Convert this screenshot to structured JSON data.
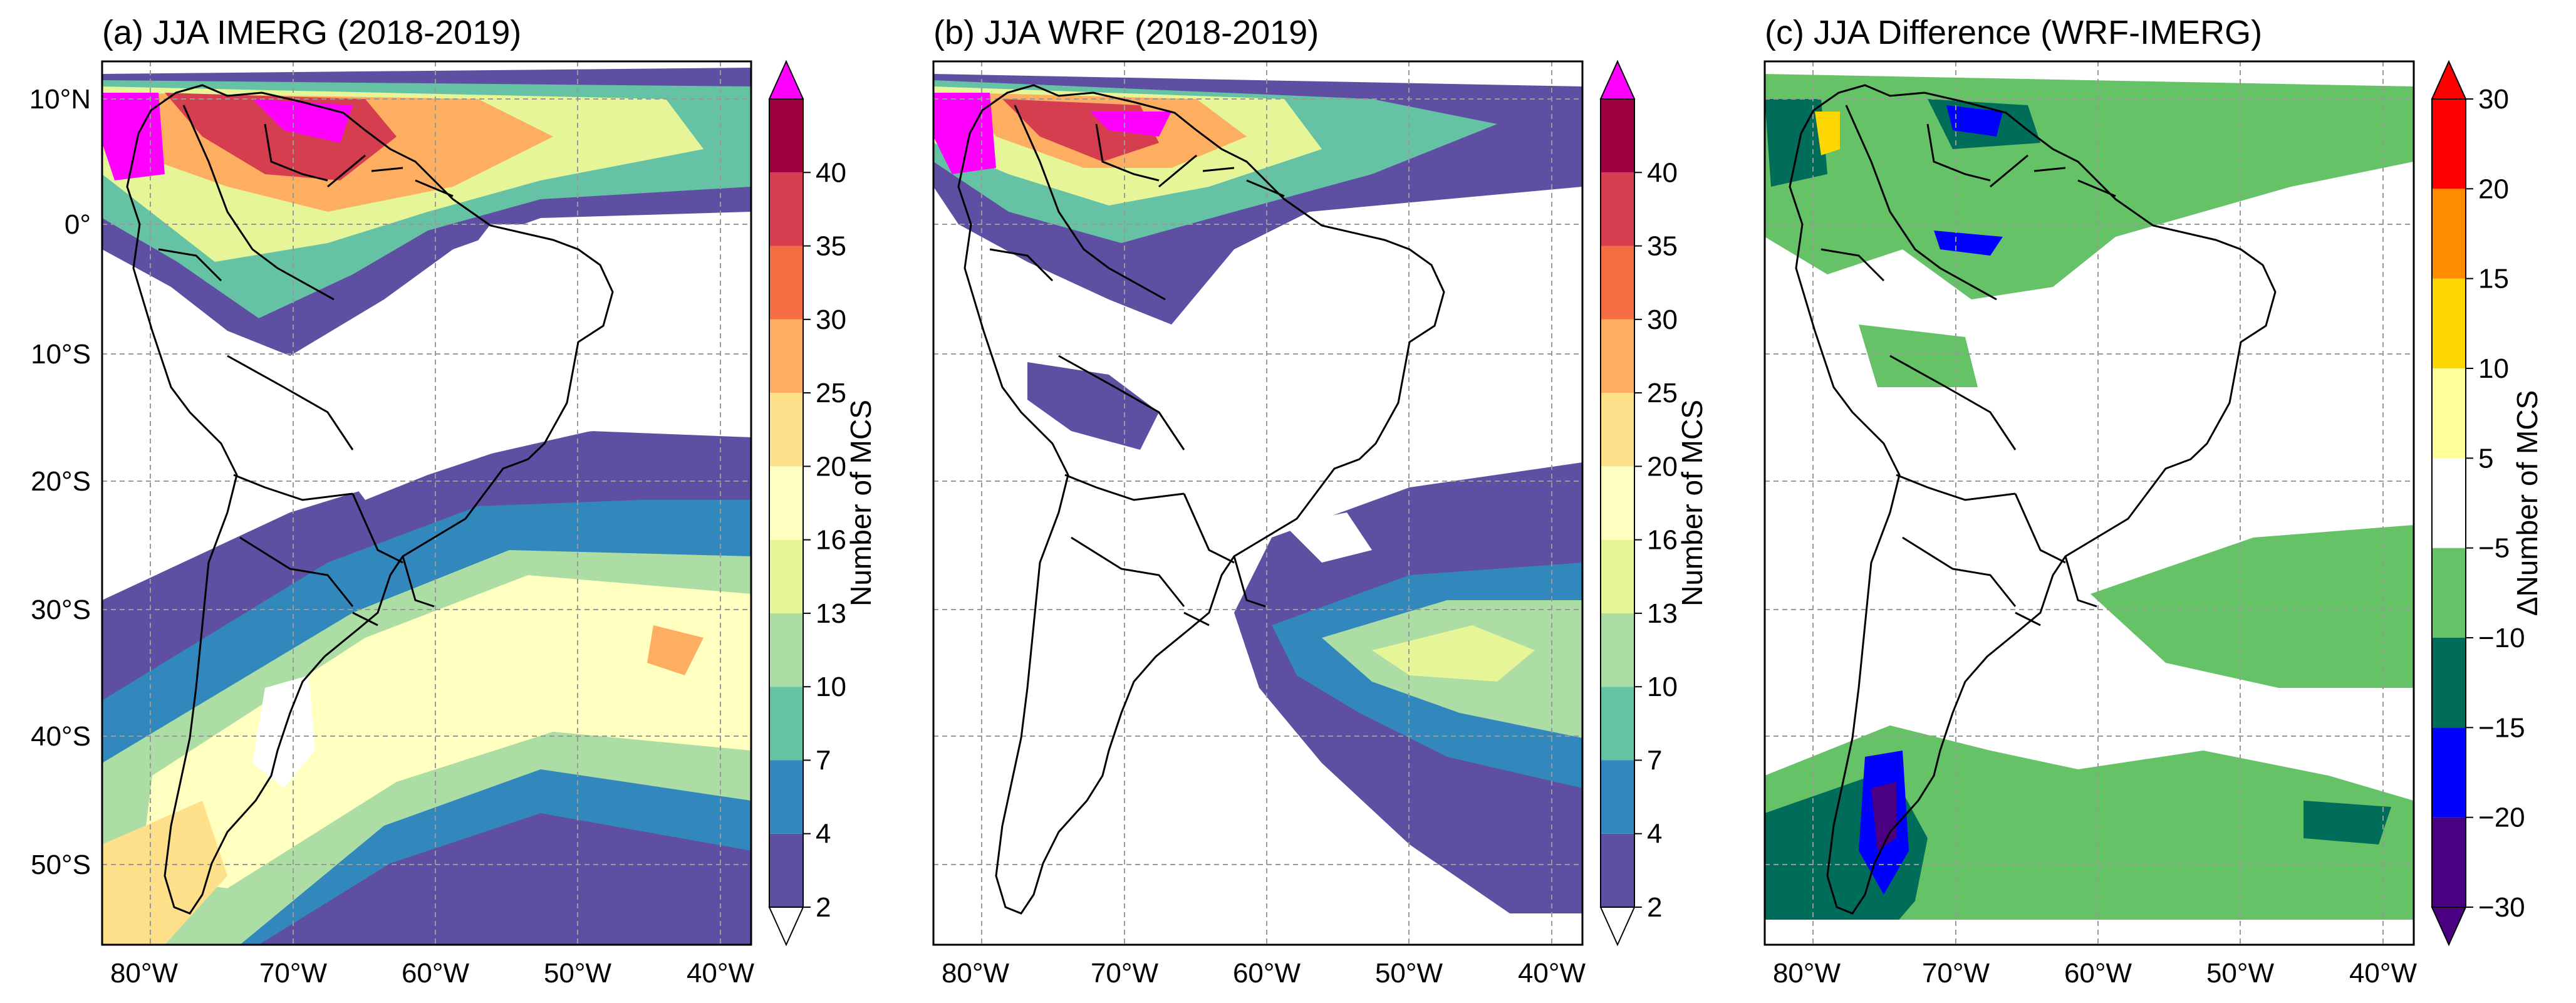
{
  "figure": {
    "panels": [
      {
        "id": "a",
        "title": "(a) JJA IMERG (2018-2019)",
        "colorbar": {
          "label": "Number of MCS",
          "levels": [
            "2",
            "4",
            "7",
            "10",
            "13",
            "16",
            "20",
            "25",
            "30",
            "35",
            "40"
          ],
          "colors": [
            "#5e4fa2",
            "#3288bd",
            "#66c2a5",
            "#abdda4",
            "#e6f598",
            "#ffffbf",
            "#fee08b",
            "#fdae61",
            "#f46d43",
            "#d53e4f",
            "#9e0142"
          ],
          "extend_low_color": "#ffffff",
          "extend_high_color": "#ff00ff"
        }
      },
      {
        "id": "b",
        "title": "(b) JJA WRF (2018-2019)",
        "colorbar": {
          "label": "Number of MCS",
          "levels": [
            "2",
            "4",
            "7",
            "10",
            "13",
            "16",
            "20",
            "25",
            "30",
            "35",
            "40"
          ],
          "colors": [
            "#5e4fa2",
            "#3288bd",
            "#66c2a5",
            "#abdda4",
            "#e6f598",
            "#ffffbf",
            "#fee08b",
            "#fdae61",
            "#f46d43",
            "#d53e4f",
            "#9e0142"
          ],
          "extend_low_color": "#ffffff",
          "extend_high_color": "#ff00ff"
        }
      },
      {
        "id": "c",
        "title": "(c) JJA Difference (WRF-IMERG)",
        "colorbar": {
          "label": "ΔNumber of MCS",
          "levels": [
            "−30",
            "−20",
            "−15",
            "−10",
            "−5",
            "5",
            "10",
            "15",
            "20",
            "30"
          ],
          "colors": [
            "#4b0082",
            "#0000ff",
            "#006d5b",
            "#66c266",
            "#ffffff",
            "#ffff99",
            "#ffd700",
            "#ff8c00",
            "#ff0000"
          ],
          "extend_low_color": "#4b0082",
          "extend_high_color": "#ff0000"
        }
      }
    ],
    "lon_ticks": [
      "80°W",
      "70°W",
      "60°W",
      "50°W",
      "40°W"
    ],
    "lat_ticks": [
      "10°N",
      "0°",
      "10°S",
      "20°S",
      "30°S",
      "40°S",
      "50°S"
    ]
  }
}
